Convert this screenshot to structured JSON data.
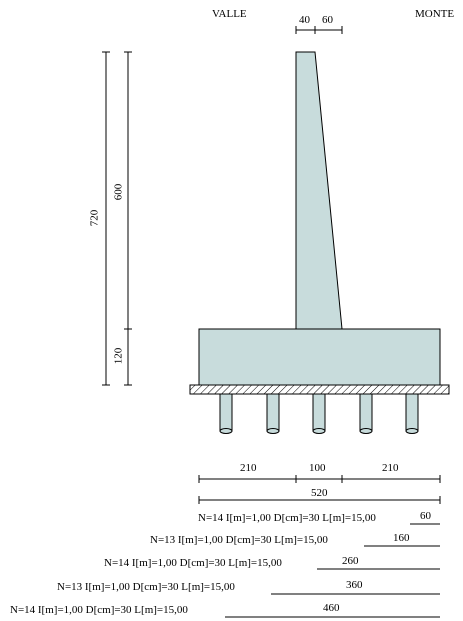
{
  "labels": {
    "left_side": "VALLE",
    "right_side": "MONTE"
  },
  "dims": {
    "top_40": "40",
    "top_60": "60",
    "total_height": "720",
    "stem_height": "600",
    "base_height": "120",
    "heel": "210",
    "stem_base": "100",
    "toe": "210",
    "total_width": "520"
  },
  "pile_rows": [
    {
      "spec": "N=14  I[m]=1,00  D[cm]=30  L[m]=15,00",
      "offset": "60"
    },
    {
      "spec": "N=13  I[m]=1,00  D[cm]=30  L[m]=15,00",
      "offset": "160"
    },
    {
      "spec": "N=14  I[m]=1,00  D[cm]=30  L[m]=15,00",
      "offset": "260"
    },
    {
      "spec": "N=13  I[m]=1,00  D[cm]=30  L[m]=15,00",
      "offset": "360"
    },
    {
      "spec": "N=14  I[m]=1,00  D[cm]=30  L[m]=15,00",
      "offset": "460"
    }
  ],
  "colors": {
    "concrete": "#c8dcdc",
    "line": "#000000"
  }
}
